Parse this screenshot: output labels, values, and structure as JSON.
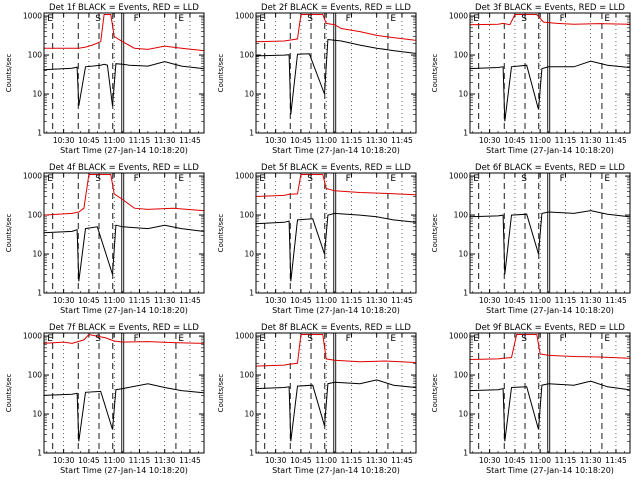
{
  "figure": {
    "background": "#ffffff",
    "events_color": "#000000",
    "lld_color": "#e00000"
  },
  "chart_data": [
    {
      "type": "line",
      "title": "Det 1f BLACK = Events, RED = LLD",
      "xlabel": "Start Time (27-Jan-14 10:18:20)",
      "ylabel": "Counts/sec",
      "yscale": "log",
      "ylim": [
        1,
        1200
      ],
      "xlim": [
        "10:18:20",
        "11:53:20"
      ],
      "x_ticks": [
        "10:30",
        "10:45",
        "11:00",
        "11:15",
        "11:30",
        "11:45"
      ],
      "y_ticks": [
        "1",
        "10",
        "100",
        "1000"
      ],
      "annotations": [
        "E",
        "S",
        "F",
        "E"
      ],
      "series": [
        {
          "name": "Events",
          "color": "#000000",
          "x": [
            "10:18",
            "10:35",
            "10:38",
            "10:39",
            "10:43",
            "10:52",
            "10:54",
            "10:56",
            "10:59",
            "11:01",
            "11:05",
            "11:09",
            "11:20",
            "11:30",
            "11:40",
            "11:53"
          ],
          "y": [
            42,
            46,
            49,
            5,
            50,
            55,
            58,
            55,
            5,
            60,
            58,
            55,
            52,
            68,
            52,
            45
          ]
        },
        {
          "name": "LLD",
          "color": "#e00000",
          "x": [
            "10:18",
            "10:35",
            "10:39",
            "10:43",
            "10:47",
            "10:52",
            "10:54",
            "10:58",
            "11:00",
            "11:05",
            "11:12",
            "11:20",
            "11:30",
            "11:40",
            "11:53"
          ],
          "y": [
            150,
            150,
            150,
            160,
            180,
            220,
            1100,
            1100,
            300,
            220,
            150,
            140,
            170,
            150,
            130
          ]
        }
      ]
    },
    {
      "type": "line",
      "title": "Det 2f BLACK = Events, RED = LLD",
      "xlabel": "Start Time (27-Jan-14 10:18:20)",
      "ylabel": "Counts/sec",
      "yscale": "log",
      "ylim": [
        1,
        1200
      ],
      "xlim": [
        "10:18:20",
        "11:53:20"
      ],
      "x_ticks": [
        "10:30",
        "10:45",
        "11:00",
        "11:15",
        "11:30",
        "11:45"
      ],
      "y_ticks": [
        "1",
        "10",
        "100",
        "1000"
      ],
      "annotations": [
        "E",
        "S",
        "F",
        "E"
      ],
      "series": [
        {
          "name": "Events",
          "color": "#000000",
          "x": [
            "10:18",
            "10:35",
            "10:38",
            "10:39",
            "10:43",
            "10:50",
            "10:59",
            "11:01",
            "11:05",
            "11:09",
            "11:20",
            "11:30",
            "11:40",
            "11:53"
          ],
          "y": [
            95,
            100,
            102,
            3,
            105,
            108,
            10,
            250,
            240,
            230,
            180,
            150,
            130,
            110
          ]
        },
        {
          "name": "LLD",
          "color": "#e00000",
          "x": [
            "10:18",
            "10:35",
            "10:38",
            "10:43",
            "10:45",
            "10:47",
            "10:58",
            "11:00",
            "11:05",
            "11:09",
            "11:20",
            "11:30",
            "11:40",
            "11:53"
          ],
          "y": [
            220,
            230,
            240,
            260,
            1100,
            1100,
            1100,
            650,
            600,
            480,
            400,
            320,
            280,
            240
          ]
        }
      ]
    },
    {
      "type": "line",
      "title": "Det 3f BLACK = Events, RED = LLD",
      "xlabel": "Start Time (27-Jan-14 10:18:20)",
      "ylabel": "Counts/sec",
      "yscale": "log",
      "ylim": [
        1,
        1200
      ],
      "xlim": [
        "10:18:20",
        "11:53:20"
      ],
      "x_ticks": [
        "10:30",
        "10:45",
        "11:00",
        "11:15",
        "11:30",
        "11:45"
      ],
      "y_ticks": [
        "1",
        "10",
        "100",
        "1000"
      ],
      "annotations": [
        "E",
        "S",
        "F",
        "E"
      ],
      "series": [
        {
          "name": "Events",
          "color": "#000000",
          "x": [
            "10:18",
            "10:35",
            "10:38",
            "10:39",
            "10:43",
            "10:52",
            "10:59",
            "11:01",
            "11:05",
            "11:20",
            "11:30",
            "11:40",
            "11:53"
          ],
          "y": [
            45,
            48,
            50,
            2,
            50,
            55,
            4,
            45,
            50,
            50,
            70,
            55,
            48
          ]
        },
        {
          "name": "LLD",
          "color": "#e00000",
          "x": [
            "10:18",
            "10:35",
            "10:38",
            "10:42",
            "10:45",
            "10:50",
            "10:58",
            "11:02",
            "11:10",
            "11:20",
            "11:35",
            "11:53"
          ],
          "y": [
            600,
            620,
            650,
            600,
            1100,
            1100,
            1100,
            700,
            650,
            620,
            640,
            620
          ]
        }
      ]
    },
    {
      "type": "line",
      "title": "Det 4f BLACK = Events, RED = LLD",
      "xlabel": "Start Time (27-Jan-14 10:18:20)",
      "ylabel": "Counts/sec",
      "yscale": "log",
      "ylim": [
        1,
        1200
      ],
      "xlim": [
        "10:18:20",
        "11:53:20"
      ],
      "x_ticks": [
        "10:30",
        "10:45",
        "11:00",
        "11:15",
        "11:30",
        "11:45"
      ],
      "y_ticks": [
        "1",
        "10",
        "100",
        "1000"
      ],
      "annotations": [
        "E",
        "S",
        "F",
        "E"
      ],
      "series": [
        {
          "name": "Events",
          "color": "#000000",
          "x": [
            "10:18",
            "10:35",
            "10:38",
            "10:39",
            "10:43",
            "10:50",
            "10:59",
            "11:01",
            "11:05",
            "11:20",
            "11:30",
            "11:40",
            "11:53"
          ],
          "y": [
            35,
            38,
            42,
            2,
            45,
            50,
            3,
            55,
            50,
            45,
            55,
            45,
            38
          ]
        },
        {
          "name": "LLD",
          "color": "#e00000",
          "x": [
            "10:18",
            "10:35",
            "10:39",
            "10:42",
            "10:45",
            "10:47",
            "10:58",
            "11:00",
            "11:05",
            "11:12",
            "11:20",
            "11:35",
            "11:53"
          ],
          "y": [
            100,
            110,
            120,
            150,
            1100,
            1100,
            1100,
            350,
            250,
            150,
            140,
            150,
            130
          ]
        }
      ]
    },
    {
      "type": "line",
      "title": "Det 5f BLACK = Events, RED = LLD",
      "xlabel": "Start Time (27-Jan-14 10:18:20)",
      "ylabel": "Counts/sec",
      "yscale": "log",
      "ylim": [
        1,
        1200
      ],
      "xlim": [
        "10:18:20",
        "11:53:20"
      ],
      "x_ticks": [
        "10:30",
        "10:45",
        "11:00",
        "11:15",
        "11:30",
        "11:45"
      ],
      "y_ticks": [
        "1",
        "10",
        "100",
        "1000"
      ],
      "annotations": [
        "E",
        "S",
        "F",
        "E"
      ],
      "series": [
        {
          "name": "Events",
          "color": "#000000",
          "x": [
            "10:18",
            "10:35",
            "10:38",
            "10:39",
            "10:43",
            "10:52",
            "10:59",
            "11:01",
            "11:05",
            "11:20",
            "11:30",
            "11:40",
            "11:53"
          ],
          "y": [
            60,
            65,
            70,
            2,
            75,
            80,
            10,
            100,
            110,
            100,
            90,
            75,
            65
          ]
        },
        {
          "name": "LLD",
          "color": "#e00000",
          "x": [
            "10:18",
            "10:35",
            "10:38",
            "10:43",
            "10:45",
            "10:48",
            "10:58",
            "11:00",
            "11:05",
            "11:20",
            "11:35",
            "11:53"
          ],
          "y": [
            300,
            320,
            340,
            350,
            1100,
            1100,
            1100,
            480,
            420,
            380,
            360,
            330
          ]
        }
      ]
    },
    {
      "type": "line",
      "title": "Det 6f BLACK = Events, RED = LLD",
      "xlabel": "Start Time (27-Jan-14 10:18:20)",
      "ylabel": "Counts/sec",
      "yscale": "log",
      "ylim": [
        1,
        1200
      ],
      "xlim": [
        "10:18:20",
        "11:53:20"
      ],
      "x_ticks": [
        "10:30",
        "10:45",
        "11:00",
        "11:15",
        "11:30",
        "11:45"
      ],
      "y_ticks": [
        "1",
        "10",
        "100",
        "1000"
      ],
      "annotations": [
        "E",
        "S",
        "F",
        "E"
      ],
      "series": [
        {
          "name": "Events",
          "color": "#000000",
          "x": [
            "10:18",
            "10:35",
            "10:38",
            "10:39",
            "10:43",
            "10:52",
            "10:59",
            "11:01",
            "11:05",
            "11:20",
            "11:30",
            "11:40",
            "11:53"
          ],
          "y": [
            90,
            95,
            100,
            3,
            100,
            105,
            10,
            110,
            120,
            110,
            130,
            105,
            90
          ]
        }
      ]
    },
    {
      "type": "line",
      "title": "Det 7f BLACK = Events, RED = LLD",
      "xlabel": "Start Time (27-Jan-14 10:18:20)",
      "ylabel": "Counts/sec",
      "yscale": "log",
      "ylim": [
        1,
        1200
      ],
      "xlim": [
        "10:18:20",
        "11:53:20"
      ],
      "x_ticks": [
        "10:30",
        "10:45",
        "11:00",
        "11:15",
        "11:30",
        "11:45"
      ],
      "y_ticks": [
        "1",
        "10",
        "100",
        "1000"
      ],
      "annotations": [
        "E",
        "S",
        "F",
        "E"
      ],
      "series": [
        {
          "name": "Events",
          "color": "#000000",
          "x": [
            "10:18",
            "10:35",
            "10:38",
            "10:39",
            "10:43",
            "10:52",
            "10:59",
            "11:01",
            "11:05",
            "11:20",
            "11:30",
            "11:40",
            "11:53"
          ],
          "y": [
            30,
            32,
            34,
            2,
            36,
            38,
            4,
            42,
            45,
            60,
            48,
            40,
            35
          ]
        },
        {
          "name": "LLD",
          "color": "#e00000",
          "x": [
            "10:18",
            "10:30",
            "10:35",
            "10:42",
            "10:45",
            "10:55",
            "11:00",
            "11:05",
            "11:20",
            "11:35",
            "11:53"
          ],
          "y": [
            650,
            700,
            650,
            800,
            1100,
            900,
            750,
            700,
            720,
            680,
            650
          ]
        }
      ]
    },
    {
      "type": "line",
      "title": "Det 8f BLACK = Events, RED = LLD",
      "xlabel": "Start Time (27-Jan-14 10:18:20)",
      "ylabel": "Counts/sec",
      "yscale": "log",
      "ylim": [
        1,
        1200
      ],
      "xlim": [
        "10:18:20",
        "11:53:20"
      ],
      "x_ticks": [
        "10:30",
        "10:45",
        "11:00",
        "11:15",
        "11:30",
        "11:45"
      ],
      "y_ticks": [
        "1",
        "10",
        "100",
        "1000"
      ],
      "annotations": [
        "E",
        "S",
        "F",
        "E"
      ],
      "series": [
        {
          "name": "Events",
          "color": "#000000",
          "x": [
            "10:18",
            "10:35",
            "10:38",
            "10:39",
            "10:43",
            "10:52",
            "10:59",
            "11:01",
            "11:05",
            "11:20",
            "11:30",
            "11:40",
            "11:53"
          ],
          "y": [
            45,
            48,
            50,
            2,
            52,
            55,
            5,
            60,
            65,
            60,
            75,
            55,
            48
          ]
        },
        {
          "name": "LLD",
          "color": "#e00000",
          "x": [
            "10:18",
            "10:35",
            "10:38",
            "10:43",
            "10:45",
            "10:47",
            "10:58",
            "11:00",
            "11:05",
            "11:20",
            "11:35",
            "11:53"
          ],
          "y": [
            170,
            180,
            190,
            200,
            1100,
            1100,
            1100,
            260,
            240,
            220,
            230,
            210
          ]
        }
      ]
    },
    {
      "type": "line",
      "title": "Det 9f BLACK = Events, RED = LLD",
      "xlabel": "Start Time (27-Jan-14 10:18:20)",
      "ylabel": "Counts/sec",
      "yscale": "log",
      "ylim": [
        1,
        1200
      ],
      "xlim": [
        "10:18:20",
        "11:53:20"
      ],
      "x_ticks": [
        "10:30",
        "10:45",
        "11:00",
        "11:15",
        "11:30",
        "11:45"
      ],
      "y_ticks": [
        "1",
        "10",
        "100",
        "1000"
      ],
      "annotations": [
        "E",
        "S",
        "F",
        "E"
      ],
      "series": [
        {
          "name": "Events",
          "color": "#000000",
          "x": [
            "10:18",
            "10:35",
            "10:38",
            "10:39",
            "10:43",
            "10:52",
            "10:59",
            "11:01",
            "11:05",
            "11:20",
            "11:30",
            "11:40",
            "11:53"
          ],
          "y": [
            40,
            42,
            45,
            2,
            48,
            50,
            4,
            55,
            60,
            55,
            70,
            50,
            42
          ]
        },
        {
          "name": "LLD",
          "color": "#e00000",
          "x": [
            "10:18",
            "10:35",
            "10:38",
            "10:43",
            "10:46",
            "10:50",
            "10:58",
            "11:00",
            "11:05",
            "11:20",
            "11:35",
            "11:53"
          ],
          "y": [
            250,
            260,
            270,
            280,
            1100,
            1100,
            1100,
            350,
            320,
            300,
            290,
            270
          ]
        }
      ]
    }
  ]
}
